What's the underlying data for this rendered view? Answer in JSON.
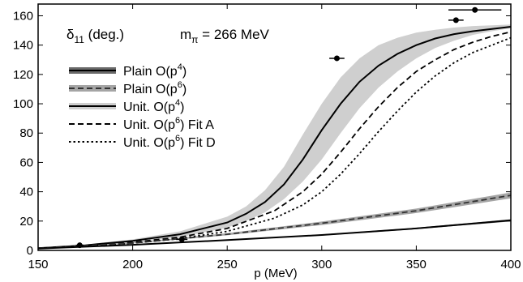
{
  "chart_data": {
    "type": "line",
    "xlabel": "p (MeV)",
    "ylabel": "",
    "xlim": [
      150,
      400
    ],
    "ylim": [
      0,
      168
    ],
    "x_ticks": [
      150,
      200,
      250,
      300,
      350,
      400
    ],
    "y_ticks": [
      0,
      20,
      40,
      60,
      80,
      100,
      120,
      140,
      160
    ],
    "annotations": {
      "quantity": "δ",
      "quantity_sub": "11",
      "quantity_unit": " (deg.)",
      "mass": "m",
      "mass_sub": "π",
      "mass_value": " = 266 MeV"
    },
    "legend": [
      {
        "key": "plain_p4",
        "pre": "Plain O(p",
        "sup": "4",
        "post": ")"
      },
      {
        "key": "plain_p6",
        "pre": "Plain O(p",
        "sup": "6",
        "post": ")"
      },
      {
        "key": "unit_p4",
        "pre": "Unit. O(p",
        "sup": "4",
        "post": ")"
      },
      {
        "key": "unit_p6_a",
        "pre": "Unit. O(p",
        "sup": "6",
        "post": ") Fit A"
      },
      {
        "key": "unit_p6_d",
        "pre": "Unit. O(p",
        "sup": "6",
        "post": ") Fit D"
      }
    ],
    "series": [
      {
        "key": "unit_p4",
        "x": [
          150,
          175,
          200,
          225,
          250,
          260,
          270,
          280,
          290,
          300,
          310,
          320,
          330,
          340,
          350,
          360,
          370,
          380,
          390,
          400
        ],
        "y": [
          1.5,
          3.5,
          6.5,
          11,
          19,
          25,
          33,
          45,
          62,
          82,
          100,
          115,
          126,
          134,
          140,
          144.5,
          147.5,
          149.5,
          151,
          152.5
        ],
        "band_lower": [
          1.3,
          3,
          5.5,
          9,
          15.5,
          20,
          26,
          35,
          47,
          62,
          80,
          97,
          111,
          122,
          131,
          138,
          143,
          147,
          149.5,
          151.5
        ],
        "band_upper": [
          1.7,
          4,
          7.5,
          13,
          23,
          30,
          41,
          57,
          79,
          100,
          118,
          131,
          140,
          145,
          148.5,
          150.5,
          152,
          153,
          153.5,
          154
        ]
      },
      {
        "key": "unit_p6_a",
        "x": [
          150,
          175,
          200,
          225,
          250,
          275,
          290,
          300,
          310,
          320,
          330,
          340,
          350,
          360,
          370,
          380,
          390,
          400
        ],
        "y": [
          1.5,
          3,
          5.5,
          9,
          15,
          27,
          40,
          52,
          67,
          83,
          98,
          111,
          122,
          130,
          137,
          142,
          146,
          149
        ]
      },
      {
        "key": "unit_p6_d",
        "x": [
          150,
          175,
          200,
          225,
          250,
          275,
          290,
          300,
          310,
          320,
          330,
          340,
          350,
          360,
          370,
          380,
          390,
          400
        ],
        "y": [
          1.5,
          2.8,
          5,
          8,
          13,
          22,
          31,
          40,
          52,
          66,
          81,
          95,
          108,
          119,
          128,
          135,
          140,
          145
        ]
      },
      {
        "key": "plain_p6",
        "x": [
          150,
          200,
          250,
          300,
          350,
          400
        ],
        "y": [
          1.5,
          5,
          11,
          18.5,
          27,
          37.5
        ],
        "band_lower": [
          1.4,
          4.7,
          10.3,
          17.3,
          25.5,
          35.5
        ],
        "band_upper": [
          1.6,
          5.3,
          11.7,
          19.7,
          28.5,
          39.5
        ]
      },
      {
        "key": "plain_p4",
        "x": [
          150,
          200,
          250,
          300,
          350,
          400
        ],
        "y": [
          1.2,
          3.8,
          7,
          10.5,
          15,
          20.5
        ],
        "band_lower": [
          1.1,
          3.6,
          6.7,
          10.1,
          14.5,
          19.8
        ],
        "band_upper": [
          1.3,
          4.0,
          7.3,
          10.9,
          15.5,
          21.2
        ]
      }
    ],
    "data_points": [
      {
        "x": 172,
        "y": 3.5,
        "xerr": 2
      },
      {
        "x": 226,
        "y": 7.5,
        "xerr": 3
      },
      {
        "x": 308,
        "y": 131,
        "xerr": 4
      },
      {
        "x": 371,
        "y": 157,
        "xerr": 4
      },
      {
        "x": 381,
        "y": 164,
        "xerr": 14
      }
    ]
  }
}
